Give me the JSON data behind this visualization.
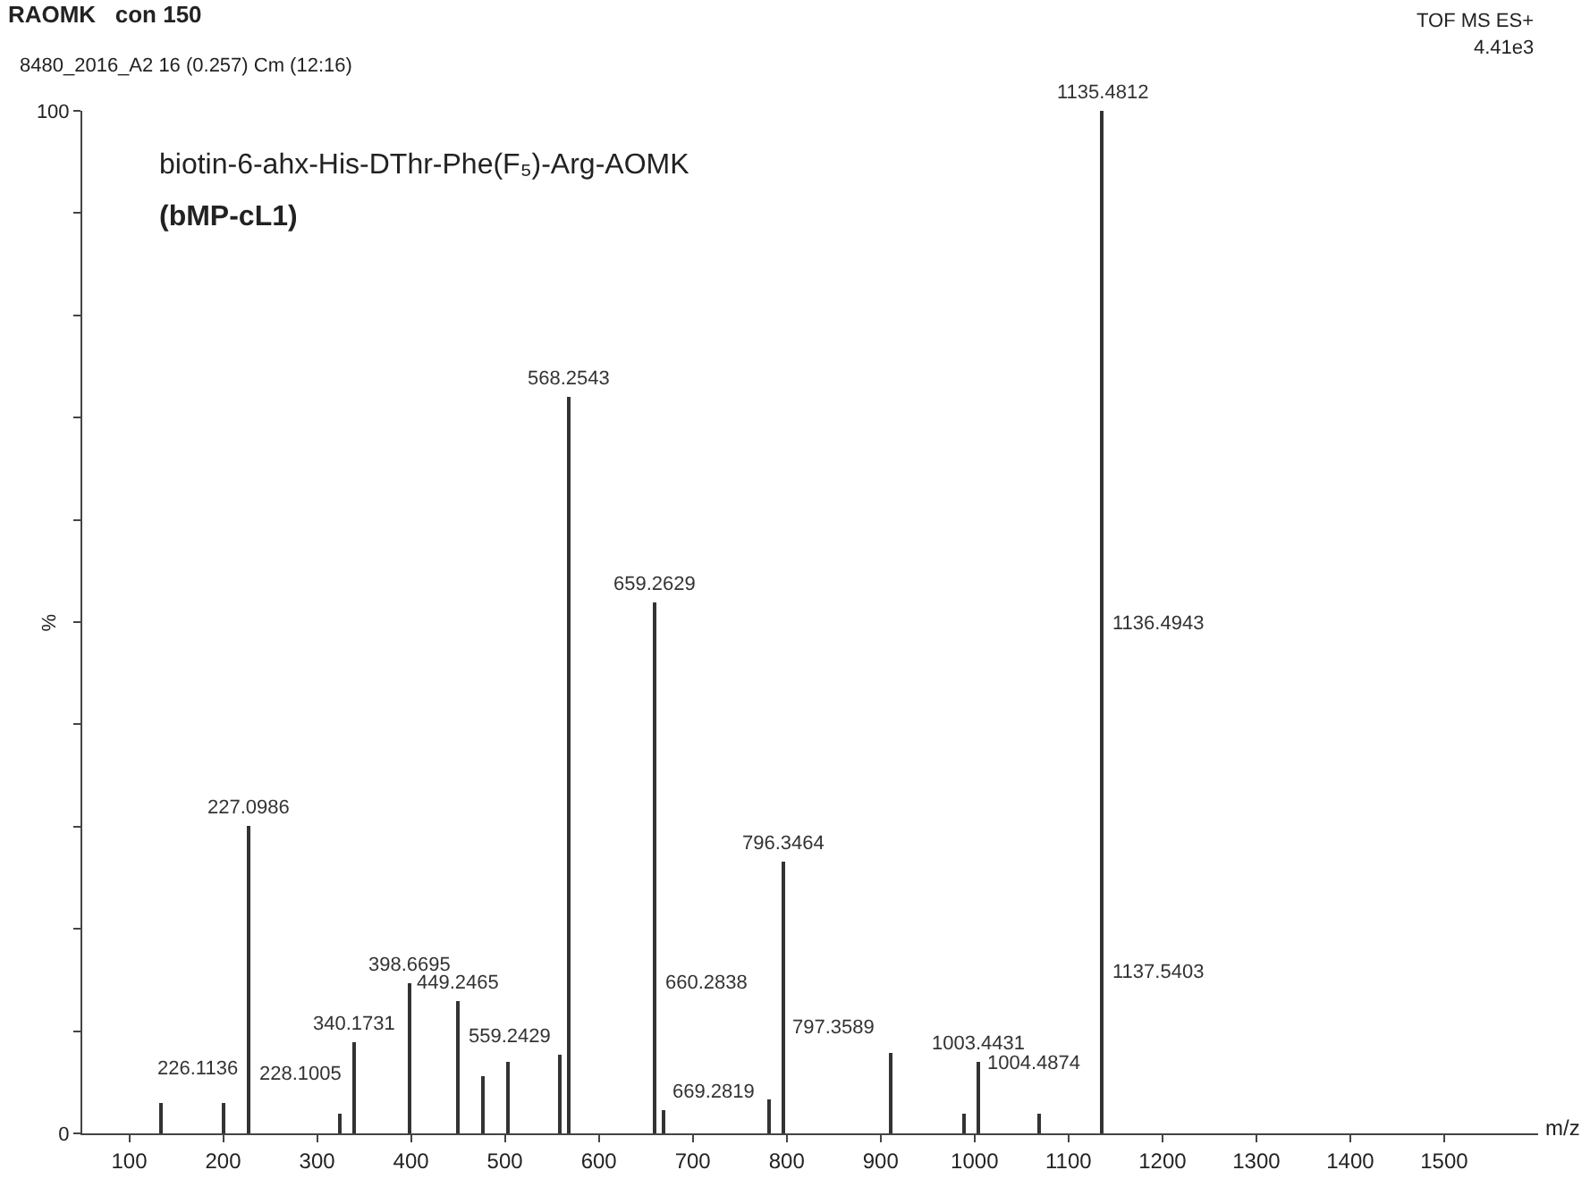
{
  "chart_data": {
    "type": "bar",
    "title": "RAOMK   con 150",
    "subtitle": "8480_2016_A2 16 (0.257) Cm (12:16)",
    "xlabel": "m/z",
    "ylabel": "%",
    "annotations": [
      "TOF MS ES+",
      "4.41e3",
      "biotin-6-ahx-His-DThr-Phe(F₅)-Arg-AOMK",
      "(bMP-cL1)",
      {
        "text": "226.1136",
        "x": 226.1136,
        "y": 4.5
      },
      {
        "text": "227.0986",
        "x": 227.0986,
        "y": 30
      },
      {
        "text": "228.1005",
        "x": 228.1005,
        "y": 4
      },
      {
        "text": "340.1731",
        "x": 340.1731,
        "y": 9
      },
      {
        "text": "398.6695",
        "x": 398.6695,
        "y": 14.7
      },
      {
        "text": "449.2465",
        "x": 449.2465,
        "y": 13
      },
      {
        "text": "559.2429",
        "x": 559.2429,
        "y": 7.7
      },
      {
        "text": "568.2543",
        "x": 568.2543,
        "y": 72
      },
      {
        "text": "659.2629",
        "x": 659.2629,
        "y": 52
      },
      {
        "text": "660.2838",
        "x": 660.2838,
        "y": 13
      },
      {
        "text": "669.2819",
        "x": 669.2819,
        "y": 2.2
      },
      {
        "text": "796.3464",
        "x": 796.3464,
        "y": 26.5
      },
      {
        "text": "797.3589",
        "x": 797.3589,
        "y": 8.5
      },
      {
        "text": "1003.4431",
        "x": 1003.4431,
        "y": 7
      },
      {
        "text": "1004.4874",
        "x": 1004.4874,
        "y": 5
      },
      {
        "text": "1135.4812",
        "x": 1135.4812,
        "y": 100
      },
      {
        "text": "1136.4943",
        "x": 1136.4943,
        "y": 48
      },
      {
        "text": "1137.5403",
        "x": 1137.5403,
        "y": 14
      }
    ],
    "x": [
      134,
      200,
      227.0986,
      324,
      340.1731,
      398.6695,
      449.2465,
      477,
      504,
      559.2429,
      568.2543,
      659.2629,
      669.2819,
      781,
      796.3464,
      910,
      988,
      1003.4431,
      1069,
      1135.4812
    ],
    "values": [
      3,
      3,
      30,
      2,
      9,
      14.7,
      13,
      5.6,
      7,
      7.7,
      72,
      52,
      2.2,
      3.4,
      26.5,
      7.9,
      2,
      7,
      2,
      100
    ],
    "color": "#333333",
    "xlim": [
      50,
      1600
    ],
    "xticks": [
      100,
      200,
      300,
      400,
      500,
      600,
      700,
      800,
      900,
      1000,
      1100,
      1200,
      1300,
      1400,
      1500
    ],
    "ylim": [
      0,
      100
    ],
    "yticks": [
      0,
      {
        "value": 10,
        "label": null
      },
      {
        "value": 20,
        "label": null
      },
      {
        "value": 30,
        "label": null
      },
      {
        "value": 40,
        "label": null
      },
      {
        "value": 50,
        "label": null
      },
      {
        "value": 60,
        "label": null
      },
      {
        "value": 70,
        "label": null
      },
      {
        "value": 80,
        "label": null
      },
      {
        "value": 90,
        "label": null
      },
      100
    ],
    "grid": false
  }
}
